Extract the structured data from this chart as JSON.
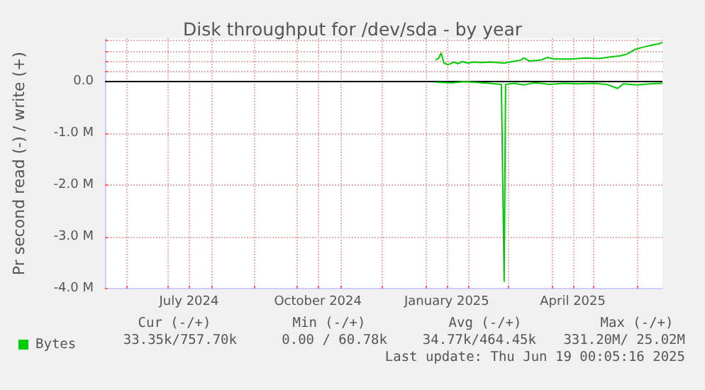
{
  "chart_data": {
    "type": "line",
    "title": "Disk throughput for /dev/sda - by year",
    "ylabel": "Pr second read (-) / write (+)",
    "xlim": [
      "2024-05-17",
      "2025-06-19"
    ],
    "xticks": [
      {
        "value": "2024-06-01",
        "label": null
      },
      {
        "value": "2024-07-01",
        "label": null
      },
      {
        "value": "2024-07-16",
        "label": "July 2024"
      },
      {
        "value": "2024-08-01",
        "label": null
      },
      {
        "value": "2024-09-01",
        "label": null
      },
      {
        "value": "2024-10-01",
        "label": null
      },
      {
        "value": "2024-10-16",
        "label": "October 2024"
      },
      {
        "value": "2024-11-01",
        "label": null
      },
      {
        "value": "2024-12-01",
        "label": null
      },
      {
        "value": "2025-01-01",
        "label": null
      },
      {
        "value": "2025-01-16",
        "label": "January 2025"
      },
      {
        "value": "2025-02-01",
        "label": null
      },
      {
        "value": "2025-03-01",
        "label": null
      },
      {
        "value": "2025-04-01",
        "label": null
      },
      {
        "value": "2025-04-16",
        "label": "April 2025"
      },
      {
        "value": "2025-05-01",
        "label": null
      },
      {
        "value": "2025-06-01",
        "label": null
      }
    ],
    "ylim": [
      -4000000,
      840000
    ],
    "yticks": [
      {
        "value": -4000000,
        "label": "-4.0 M"
      },
      {
        "value": -3000000,
        "label": "-3.0 M"
      },
      {
        "value": -2000000,
        "label": "-2.0 M"
      },
      {
        "value": -1000000,
        "label": "-1.0 M"
      },
      {
        "value": 0,
        "label": "0.0"
      },
      {
        "value": 200000,
        "label": null
      },
      {
        "value": 400000,
        "label": null
      },
      {
        "value": 600000,
        "label": null
      },
      {
        "value": 800000,
        "label": null
      }
    ],
    "grid": true,
    "legend": "bottom left",
    "marker": "none",
    "ref_lines": [
      {
        "axis": "y",
        "value": 0,
        "label": null,
        "color": "#000000"
      }
    ],
    "series": [
      {
        "name": "Bytes",
        "color": "#00cc00",
        "x": [
          "2025-01-08",
          "2025-01-10",
          "2025-01-12",
          "2025-01-14",
          "2025-01-17",
          "2025-01-21",
          "2025-01-24",
          "2025-01-27",
          "2025-01-31",
          "2025-02-04",
          "2025-02-10",
          "2025-02-16",
          "2025-02-26",
          "2025-03-04",
          "2025-03-10",
          "2025-03-12",
          "2025-03-16",
          "2025-03-24",
          "2025-03-29",
          "2025-04-03",
          "2025-04-15",
          "2025-04-25",
          "2025-05-05",
          "2025-05-13",
          "2025-05-20",
          "2025-05-25",
          "2025-05-30",
          "2025-06-04",
          "2025-06-10",
          "2025-06-16",
          "2025-06-19"
        ],
        "values": [
          420000,
          450000,
          550000,
          360000,
          330000,
          380000,
          350000,
          390000,
          360000,
          380000,
          370000,
          380000,
          360000,
          390000,
          420000,
          460000,
          400000,
          420000,
          470000,
          440000,
          440000,
          460000,
          450000,
          480000,
          500000,
          540000,
          620000,
          660000,
          700000,
          730000,
          760000
        ]
      },
      {
        "color": "#00cc00",
        "x": [
          "2025-01-08",
          "2025-01-20",
          "2025-01-28",
          "2025-02-05",
          "2025-02-15",
          "2025-02-24",
          "2025-02-26",
          "2025-02-27",
          "2025-03-05",
          "2025-03-12",
          "2025-03-20",
          "2025-03-30",
          "2025-04-10",
          "2025-04-20",
          "2025-05-01",
          "2025-05-10",
          "2025-05-18",
          "2025-05-22",
          "2025-06-01",
          "2025-06-10",
          "2025-06-19"
        ],
        "values": [
          -10000,
          -20000,
          0,
          -10000,
          -30000,
          -50000,
          -3860000,
          -50000,
          -30000,
          -60000,
          -20000,
          -50000,
          -30000,
          -40000,
          -30000,
          -50000,
          -130000,
          -40000,
          -60000,
          -40000,
          -30000
        ]
      }
    ],
    "annotations": [
      "Cur (-/+)",
      "Min (-/+)",
      "Avg (-/+)",
      "Max (-/+)",
      "33.35k/757.70k",
      "0.00 / 60.78k",
      "34.77k/464.45k",
      "331.20M/ 25.02M",
      "Last update: Thu Jun 19 00:05:16 2025"
    ]
  }
}
